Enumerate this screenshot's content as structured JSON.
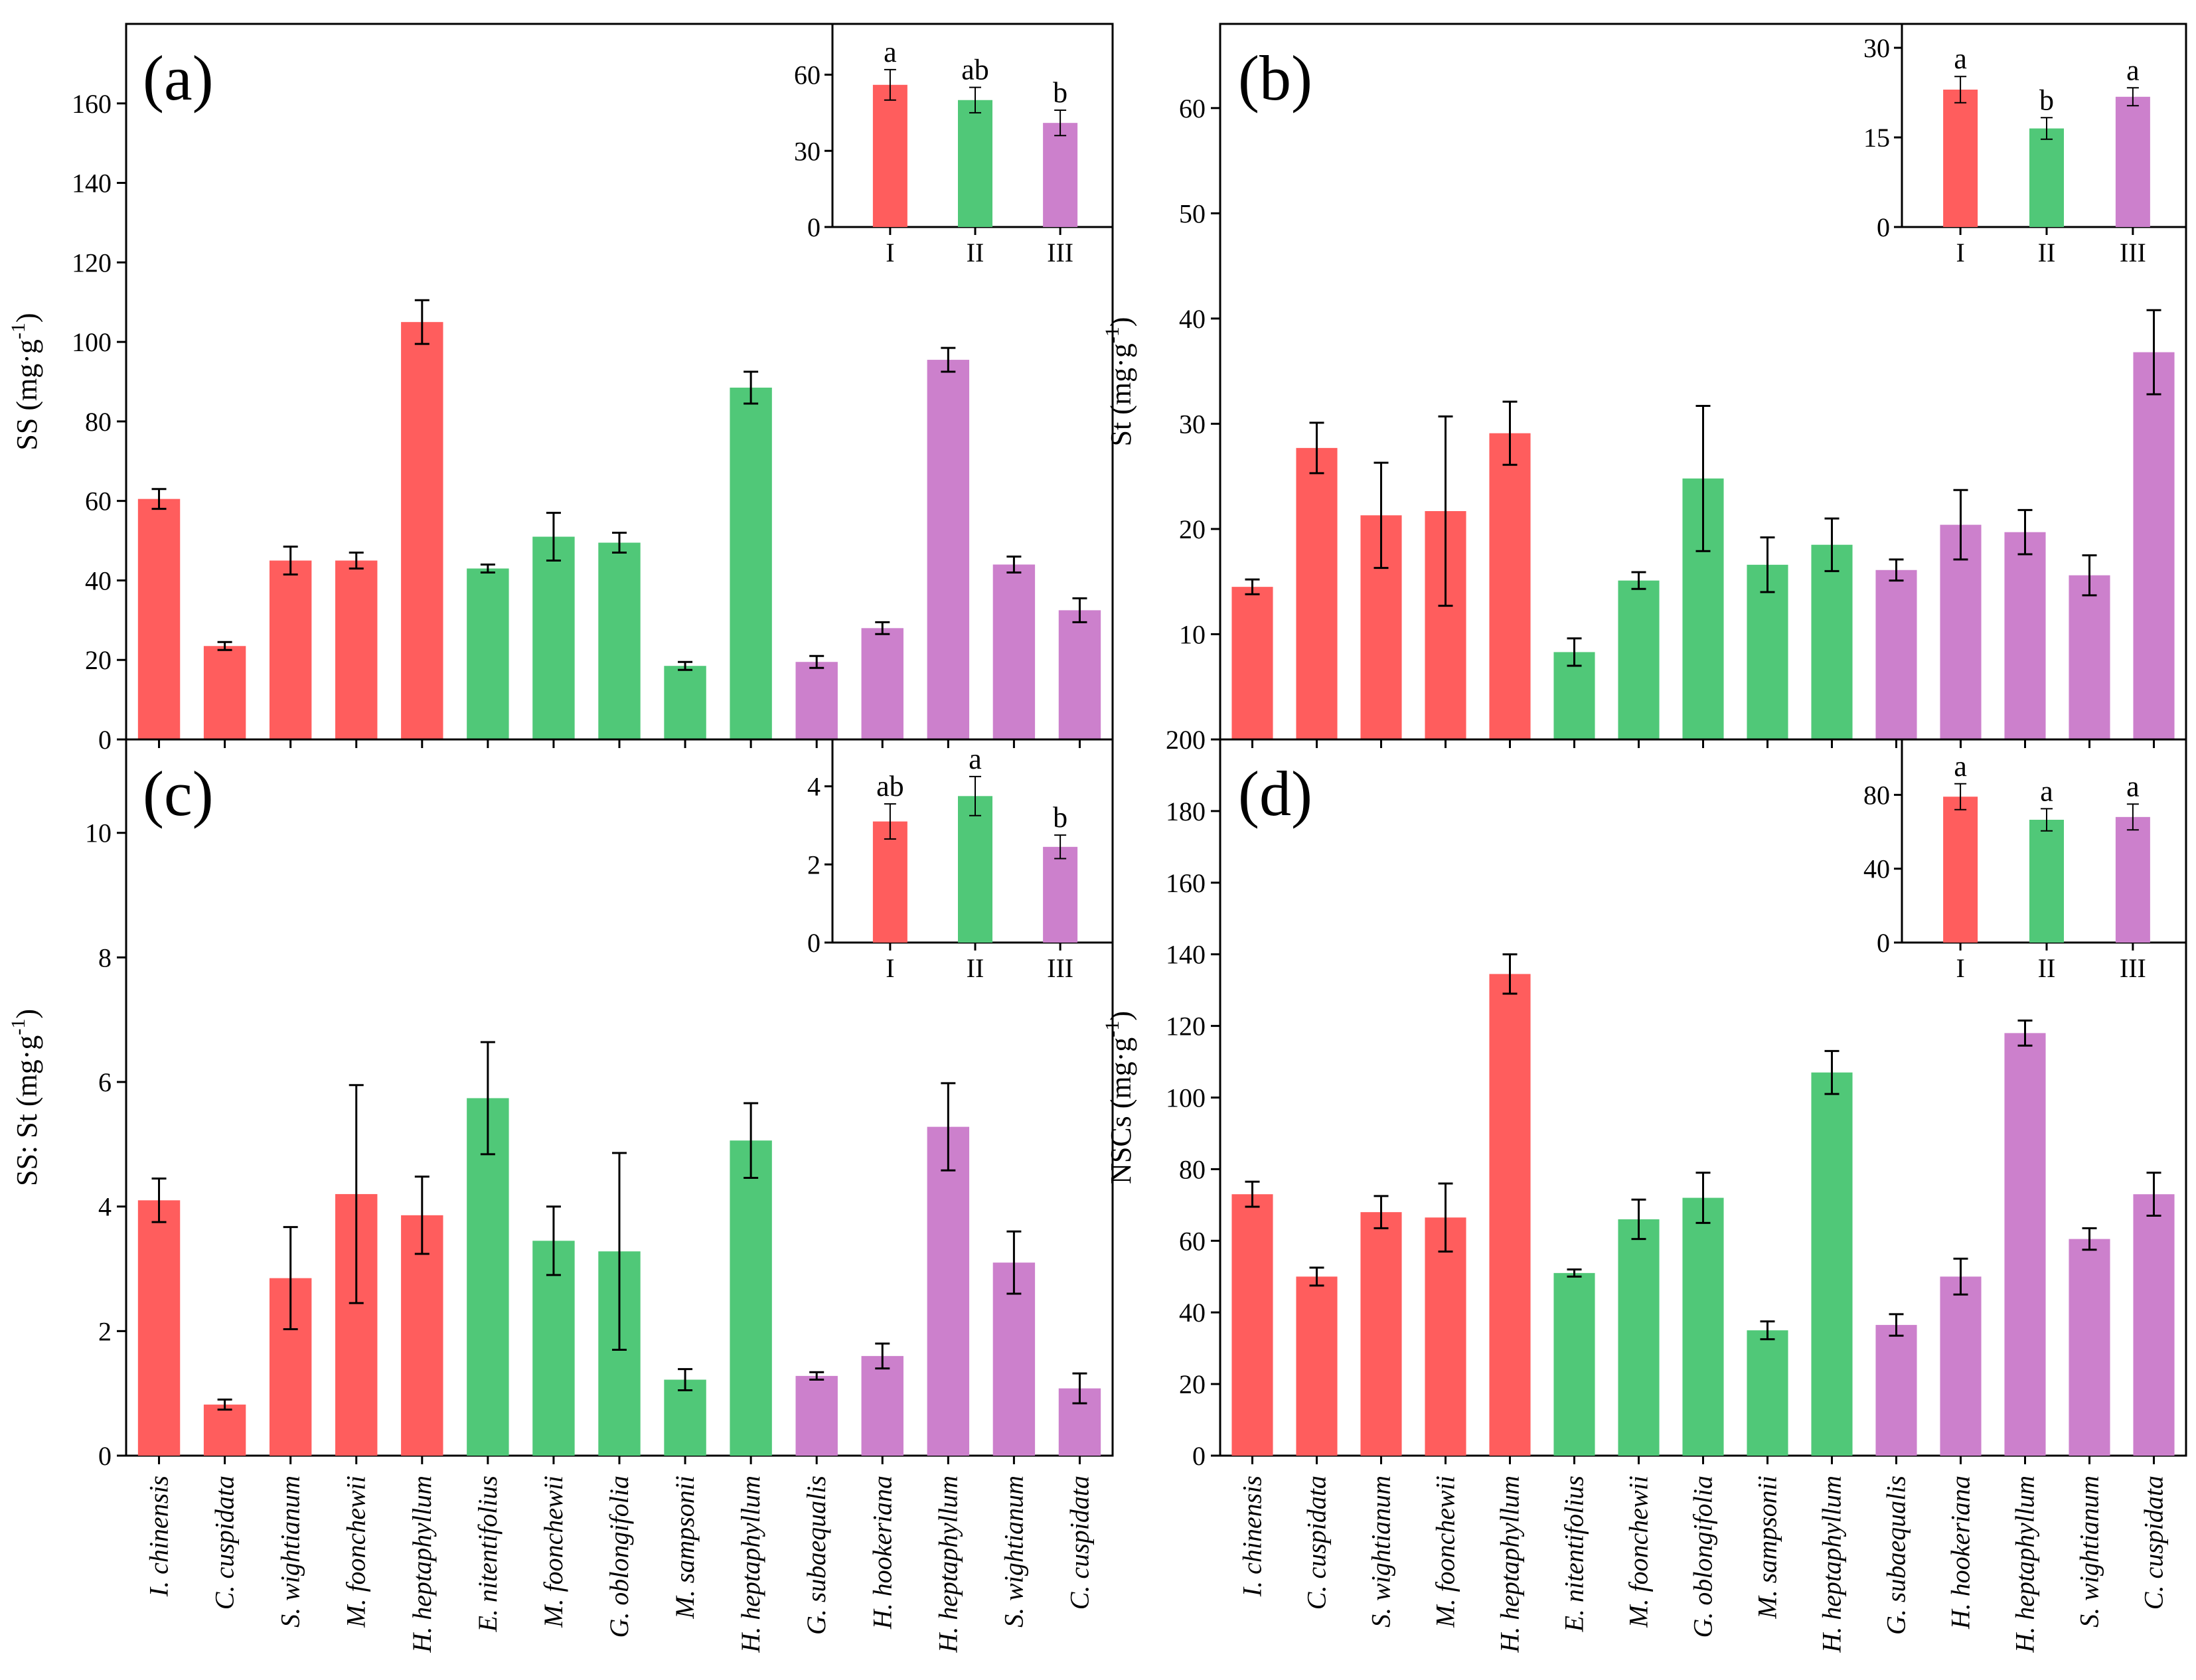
{
  "colors": {
    "group_I": "#ff5d5d",
    "group_II": "#50c878",
    "group_III": "#cc80cc",
    "axis": "#000000"
  },
  "categories": [
    "I. chinensis",
    "C. cuspidata",
    "S. wightianum",
    "M. foonchewii",
    "H. heptaphyllum",
    "E. nitentifolius",
    "M. foonchewii",
    "G. oblongifolia",
    "M. sampsonii",
    "H. heptaphyllum",
    "G. subaequalis",
    "H. hookeriana",
    "H. heptaphyllum",
    "S. wightianum",
    "C. cuspidata"
  ],
  "groups": [
    "I",
    "I",
    "I",
    "I",
    "I",
    "II",
    "II",
    "II",
    "II",
    "II",
    "III",
    "III",
    "III",
    "III",
    "III"
  ],
  "chart_data": [
    {
      "type": "bar",
      "label": "(a)",
      "ylabel_main": "SS (mg·g",
      "ylabel_sup": "-1",
      "ylabel_close": ")",
      "ylim": [
        0,
        180
      ],
      "yticks": [
        "0",
        "20",
        "40",
        "60",
        "80",
        "100",
        "120",
        "140",
        "160"
      ],
      "values": [
        60.5,
        23.5,
        45,
        45,
        105,
        43,
        51,
        49.5,
        18.5,
        88.5,
        19.5,
        28,
        95.5,
        44,
        32.5
      ],
      "errors": [
        2.5,
        1,
        3.5,
        2,
        5.5,
        1,
        6,
        2.5,
        1,
        4,
        1.5,
        1.5,
        3,
        2,
        3
      ],
      "inset": {
        "ylim": [
          0,
          80
        ],
        "yticks": [
          "0",
          "30",
          "60"
        ],
        "categories": [
          "I",
          "II",
          "III"
        ],
        "values": [
          56,
          50,
          41
        ],
        "errors": [
          6,
          5,
          5
        ],
        "letters": [
          "a",
          "ab",
          "b"
        ]
      }
    },
    {
      "type": "bar",
      "label": "(b)",
      "ylabel_main": "St (mg·g",
      "ylabel_sup": "-1",
      "ylabel_close": ")",
      "ylim": [
        0,
        68
      ],
      "yticks": [
        "10",
        "20",
        "30",
        "40",
        "50",
        "60"
      ],
      "values": [
        14.5,
        27.7,
        21.3,
        21.7,
        29.1,
        8.3,
        15.1,
        24.8,
        16.6,
        18.5,
        16.1,
        20.4,
        19.7,
        15.6,
        36.8
      ],
      "errors": [
        0.7,
        2.4,
        5,
        9,
        3,
        1.3,
        0.8,
        6.9,
        2.6,
        2.5,
        1,
        3.3,
        2.1,
        1.9,
        4
      ],
      "inset": {
        "ylim": [
          0,
          34
        ],
        "yticks": [
          "0",
          "15",
          "30"
        ],
        "categories": [
          "I",
          "II",
          "III"
        ],
        "values": [
          23,
          16.5,
          21.8
        ],
        "errors": [
          2.2,
          1.8,
          1.5
        ],
        "letters": [
          "a",
          "b",
          "a"
        ]
      }
    },
    {
      "type": "bar",
      "label": "(c)",
      "ylabel_main": "SS: St (mg·g",
      "ylabel_sup": "-1",
      "ylabel_close": ")",
      "ylim": [
        0,
        11.5
      ],
      "yticks": [
        "0",
        "2",
        "4",
        "6",
        "8",
        "10"
      ],
      "values": [
        4.1,
        0.82,
        2.85,
        4.2,
        3.86,
        5.74,
        3.45,
        3.28,
        1.22,
        5.06,
        1.28,
        1.6,
        5.28,
        3.1,
        1.08
      ],
      "errors": [
        0.35,
        0.08,
        0.82,
        1.75,
        0.62,
        0.9,
        0.55,
        1.58,
        0.17,
        0.6,
        0.06,
        0.2,
        0.7,
        0.5,
        0.24
      ],
      "inset": {
        "ylim": [
          0,
          5.2
        ],
        "yticks": [
          "0",
          "2",
          "4"
        ],
        "categories": [
          "I",
          "II",
          "III"
        ],
        "values": [
          3.1,
          3.75,
          2.45
        ],
        "errors": [
          0.45,
          0.5,
          0.3
        ],
        "letters": [
          "ab",
          "a",
          "b"
        ]
      }
    },
    {
      "type": "bar",
      "label": "(d)",
      "ylabel_main": "NSCs (mg·g",
      "ylabel_sup": "-1",
      "ylabel_close": ")",
      "ylim": [
        0,
        200
      ],
      "yticks": [
        "0",
        "20",
        "40",
        "60",
        "80",
        "100",
        "120",
        "140",
        "160",
        "180",
        "200"
      ],
      "values": [
        73,
        50,
        68,
        66.5,
        134.5,
        51,
        66,
        72,
        35,
        107,
        36.5,
        50,
        118,
        60.5,
        73
      ],
      "errors": [
        3.5,
        2.5,
        4.5,
        9.5,
        5.5,
        1,
        5.5,
        7,
        2.5,
        6,
        3,
        5,
        3.5,
        3,
        6
      ],
      "inset": {
        "ylim": [
          0,
          110
        ],
        "yticks": [
          "0",
          "40",
          "80"
        ],
        "categories": [
          "I",
          "II",
          "III"
        ],
        "values": [
          79,
          66.5,
          68
        ],
        "errors": [
          7,
          6,
          7
        ],
        "letters": [
          "a",
          "a",
          "a"
        ]
      }
    }
  ]
}
